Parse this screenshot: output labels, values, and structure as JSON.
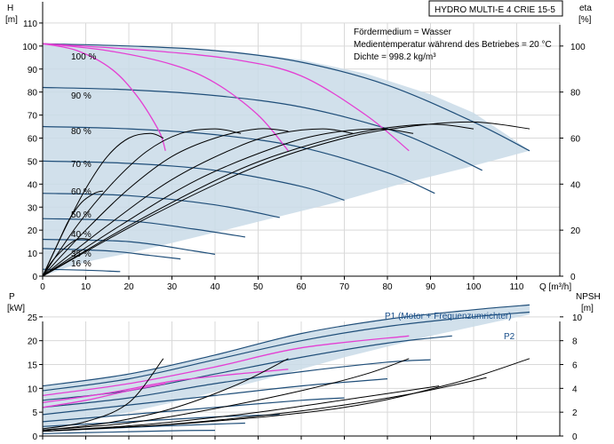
{
  "title": "HYDRO MULTI-E 4 CRIE 15-5",
  "info": [
    "Fördermedium = Wasser",
    "Medientemperatur während des Betriebes = 20 °C",
    "Dichte = 998.2 kg/m³"
  ],
  "colors": {
    "envelope": "#c9dbe8",
    "curve": "#1f4e79",
    "highlight": "#e43fd3",
    "eta": "#000000",
    "axis": "#000000",
    "grid": "#d9d9d9"
  },
  "chart_data": [
    {
      "type": "line",
      "name": "QH",
      "xlabel": "Q [m³/h]",
      "ylabel_left": "H\n[m]",
      "ylabel_right": "eta\n[%]",
      "xlim": [
        0,
        120
      ],
      "ylim": [
        0,
        120
      ],
      "eta_lim": [
        0,
        120
      ],
      "x_ticks": [
        0,
        10,
        20,
        30,
        40,
        50,
        60,
        70,
        80,
        90,
        100,
        110
      ],
      "y_ticks": [
        0,
        10,
        20,
        30,
        40,
        50,
        60,
        70,
        80,
        90,
        100,
        110
      ],
      "eta_ticks": [
        0,
        20,
        40,
        60,
        80,
        100
      ],
      "speed_labels": [
        "100 %",
        "90 %",
        "80 %",
        "70 %",
        "60 %",
        "50 %",
        "40 %",
        "35 %",
        "16 %"
      ],
      "envelope": [
        [
          0,
          101
        ],
        [
          15,
          100
        ],
        [
          30,
          99
        ],
        [
          45,
          97.5
        ],
        [
          60,
          94
        ],
        [
          75,
          88
        ],
        [
          90,
          79
        ],
        [
          100,
          71
        ],
        [
          108,
          61
        ],
        [
          113,
          54.5
        ],
        [
          98,
          47
        ],
        [
          82,
          39.5
        ],
        [
          68,
          32
        ],
        [
          54,
          25.5
        ],
        [
          40,
          19
        ],
        [
          29,
          14
        ],
        [
          20,
          10
        ],
        [
          12,
          7
        ],
        [
          6,
          4
        ],
        [
          0,
          0
        ]
      ],
      "hq_curves": [
        {
          "speed": "100 %",
          "points": [
            [
              0,
              101
            ],
            [
              20,
              100
            ],
            [
              40,
              98
            ],
            [
              60,
              93
            ],
            [
              80,
              83
            ],
            [
              100,
              67
            ],
            [
              113,
              54.5
            ]
          ]
        },
        {
          "speed": "90 %",
          "points": [
            [
              0,
              82
            ],
            [
              20,
              81
            ],
            [
              40,
              78.5
            ],
            [
              60,
              73.5
            ],
            [
              80,
              64
            ],
            [
              92,
              55
            ],
            [
              102,
              46
            ]
          ]
        },
        {
          "speed": "80 %",
          "points": [
            [
              0,
              65
            ],
            [
              20,
              64
            ],
            [
              40,
              61.5
            ],
            [
              60,
              56
            ],
            [
              80,
              45
            ],
            [
              91,
              36
            ]
          ]
        },
        {
          "speed": "70 %",
          "points": [
            [
              0,
              50
            ],
            [
              20,
              49
            ],
            [
              40,
              46
            ],
            [
              60,
              39
            ],
            [
              70,
              33
            ]
          ]
        },
        {
          "speed": "60 %",
          "points": [
            [
              0,
              36
            ],
            [
              20,
              35
            ],
            [
              40,
              31
            ],
            [
              55,
              25.5
            ]
          ]
        },
        {
          "speed": "50 %",
          "points": [
            [
              0,
              25
            ],
            [
              20,
              24
            ],
            [
              35,
              20.5
            ],
            [
              47,
              17
            ]
          ]
        },
        {
          "speed": "40 %",
          "points": [
            [
              0,
              16
            ],
            [
              20,
              15
            ],
            [
              35,
              11
            ],
            [
              40,
              9.5
            ]
          ]
        },
        {
          "speed": "35 %",
          "points": [
            [
              0,
              12
            ],
            [
              15,
              11
            ],
            [
              25,
              9
            ],
            [
              32,
              7.5
            ]
          ]
        },
        {
          "speed": "16 %",
          "points": [
            [
              0,
              3
            ],
            [
              10,
              2.6
            ],
            [
              18,
              2
            ]
          ]
        }
      ],
      "highlight_hq": [
        {
          "points": [
            [
              0,
              101
            ],
            [
              8,
              98
            ],
            [
              16,
              90
            ],
            [
              22,
              78
            ],
            [
              27,
              63
            ],
            [
              28.5,
              54.5
            ]
          ]
        },
        {
          "points": [
            [
              0,
              101
            ],
            [
              15,
              98
            ],
            [
              30,
              92
            ],
            [
              40,
              84
            ],
            [
              50,
              70
            ],
            [
              57,
              54.5
            ]
          ]
        },
        {
          "points": [
            [
              0,
              101
            ],
            [
              25,
              98
            ],
            [
              45,
              94
            ],
            [
              60,
              87
            ],
            [
              75,
              70
            ],
            [
              85,
              54.5
            ]
          ]
        }
      ],
      "eta_curves": [
        {
          "points": [
            [
              0,
              0
            ],
            [
              5,
              20
            ],
            [
              10,
              38
            ],
            [
              15,
              52
            ],
            [
              20,
              60
            ],
            [
              25,
              62
            ],
            [
              28,
              60
            ]
          ]
        },
        {
          "points": [
            [
              0,
              0
            ],
            [
              8,
              22
            ],
            [
              16,
              40
            ],
            [
              24,
              54
            ],
            [
              32,
              62
            ],
            [
              40,
              64
            ],
            [
              46,
              62
            ]
          ]
        },
        {
          "points": [
            [
              0,
              0
            ],
            [
              10,
              20
            ],
            [
              20,
              38
            ],
            [
              30,
              52
            ],
            [
              40,
              60
            ],
            [
              50,
              64
            ],
            [
              57,
              63
            ]
          ]
        },
        {
          "points": [
            [
              0,
              0
            ],
            [
              15,
              22
            ],
            [
              30,
              42
            ],
            [
              45,
              56
            ],
            [
              55,
              62
            ],
            [
              65,
              64
            ],
            [
              72,
              62
            ]
          ]
        },
        {
          "points": [
            [
              0,
              0
            ],
            [
              18,
              22
            ],
            [
              36,
              42
            ],
            [
              54,
              56
            ],
            [
              66,
              62
            ],
            [
              78,
              64
            ],
            [
              86,
              62
            ]
          ]
        },
        {
          "points": [
            [
              0,
              0
            ],
            [
              22,
              24
            ],
            [
              44,
              45
            ],
            [
              60,
              56
            ],
            [
              75,
              63
            ],
            [
              90,
              66
            ],
            [
              100,
              64
            ]
          ]
        },
        {
          "points": [
            [
              0,
              0
            ],
            [
              25,
              26
            ],
            [
              50,
              48
            ],
            [
              70,
              60
            ],
            [
              85,
              65
            ],
            [
              100,
              67
            ],
            [
              113,
              64
            ]
          ]
        },
        {
          "points": [
            [
              0,
              0
            ],
            [
              3,
              12
            ],
            [
              6,
              24
            ],
            [
              9,
              32
            ],
            [
              12,
              36
            ],
            [
              14,
              37
            ]
          ]
        },
        {
          "points": [
            [
              0,
              0
            ],
            [
              2,
              6
            ],
            [
              5,
              12
            ],
            [
              8,
              16
            ],
            [
              11,
              16
            ]
          ]
        }
      ]
    },
    {
      "type": "line",
      "name": "P-NPSH",
      "ylabel_left": "P\n[kW]",
      "ylabel_right": "NPSH\n[m]",
      "xlim": [
        0,
        120
      ],
      "ylim": [
        0,
        30
      ],
      "npsh_lim": [
        0,
        12
      ],
      "y_ticks": [
        0,
        5,
        10,
        15,
        20,
        25
      ],
      "npsh_ticks": [
        0,
        2,
        4,
        6,
        8,
        10
      ],
      "labels": [
        "P1 (Motor + Frequenzumrichter)",
        "P2"
      ],
      "envelope": [
        [
          0,
          10.5
        ],
        [
          20,
          13
        ],
        [
          40,
          17
        ],
        [
          60,
          21.5
        ],
        [
          80,
          24.5
        ],
        [
          100,
          26.5
        ],
        [
          113,
          27.5
        ],
        [
          113,
          25.5
        ],
        [
          90,
          21
        ],
        [
          70,
          16.5
        ],
        [
          50,
          11.5
        ],
        [
          30,
          7
        ],
        [
          15,
          4
        ],
        [
          5,
          2
        ],
        [
          0,
          1
        ]
      ],
      "p_curves": [
        {
          "points": [
            [
              0,
              10.5
            ],
            [
              20,
              13
            ],
            [
              40,
              17
            ],
            [
              60,
              21.5
            ],
            [
              80,
              24.5
            ],
            [
              100,
              26.5
            ],
            [
              113,
              27.5
            ]
          ]
        },
        {
          "points": [
            [
              0,
              9.5
            ],
            [
              20,
              12
            ],
            [
              40,
              16
            ],
            [
              60,
              20
            ],
            [
              80,
              23
            ],
            [
              100,
              25
            ],
            [
              113,
              26
            ]
          ]
        },
        {
          "points": [
            [
              0,
              7.5
            ],
            [
              20,
              9.5
            ],
            [
              40,
              13
            ],
            [
              60,
              16.5
            ],
            [
              80,
              19.5
            ],
            [
              95,
              21
            ]
          ]
        },
        {
          "points": [
            [
              0,
              6
            ],
            [
              20,
              8
            ],
            [
              40,
              11
            ],
            [
              60,
              13.5
            ],
            [
              80,
              15.5
            ],
            [
              90,
              16
            ]
          ]
        },
        {
          "points": [
            [
              0,
              4.5
            ],
            [
              20,
              6.5
            ],
            [
              40,
              8.5
            ],
            [
              60,
              10.5
            ],
            [
              80,
              12
            ]
          ]
        },
        {
          "points": [
            [
              0,
              3
            ],
            [
              20,
              4.5
            ],
            [
              40,
              6
            ],
            [
              60,
              7.5
            ],
            [
              70,
              8
            ]
          ]
        },
        {
          "points": [
            [
              0,
              2
            ],
            [
              20,
              3
            ],
            [
              40,
              4
            ],
            [
              55,
              4.5
            ]
          ]
        },
        {
          "points": [
            [
              0,
              1
            ],
            [
              20,
              1.8
            ],
            [
              40,
              2.5
            ],
            [
              47,
              2.7
            ]
          ]
        },
        {
          "points": [
            [
              0,
              0.5
            ],
            [
              15,
              0.8
            ],
            [
              30,
              1.1
            ],
            [
              40,
              1.2
            ]
          ]
        }
      ],
      "highlight_p": [
        {
          "points": [
            [
              0,
              6
            ],
            [
              10,
              7.5
            ],
            [
              20,
              9.5
            ],
            [
              28.5,
              11
            ]
          ]
        },
        {
          "points": [
            [
              0,
              7
            ],
            [
              15,
              9
            ],
            [
              30,
              11.5
            ],
            [
              45,
              13
            ],
            [
              57,
              14
            ]
          ]
        },
        {
          "points": [
            [
              0,
              8.5
            ],
            [
              20,
              11
            ],
            [
              40,
              14.5
            ],
            [
              60,
              18.5
            ],
            [
              85,
              21
            ]
          ]
        }
      ],
      "npsh_curves": [
        {
          "points": [
            [
              0,
              0.6
            ],
            [
              10,
              1.2
            ],
            [
              20,
              2.8
            ],
            [
              28,
              6.5
            ]
          ]
        },
        {
          "points": [
            [
              0,
              0.5
            ],
            [
              15,
              1.1
            ],
            [
              30,
              2.3
            ],
            [
              45,
              4.3
            ],
            [
              57,
              6.5
            ]
          ]
        },
        {
          "points": [
            [
              0,
              0.5
            ],
            [
              20,
              1.1
            ],
            [
              40,
              2.3
            ],
            [
              60,
              3.8
            ],
            [
              75,
              5.2
            ],
            [
              85,
              6.5
            ]
          ]
        },
        {
          "points": [
            [
              0,
              0.4
            ],
            [
              25,
              1
            ],
            [
              50,
              2
            ],
            [
              75,
              3.3
            ],
            [
              92,
              4.2
            ]
          ]
        },
        {
          "points": [
            [
              0,
              0.4
            ],
            [
              30,
              1
            ],
            [
              60,
              2.1
            ],
            [
              85,
              3.5
            ],
            [
              103,
              4.9
            ]
          ]
        },
        {
          "points": [
            [
              0,
              0.4
            ],
            [
              35,
              1.1
            ],
            [
              70,
              2.4
            ],
            [
              95,
              4.4
            ],
            [
              113,
              6.5
            ]
          ]
        }
      ]
    }
  ]
}
